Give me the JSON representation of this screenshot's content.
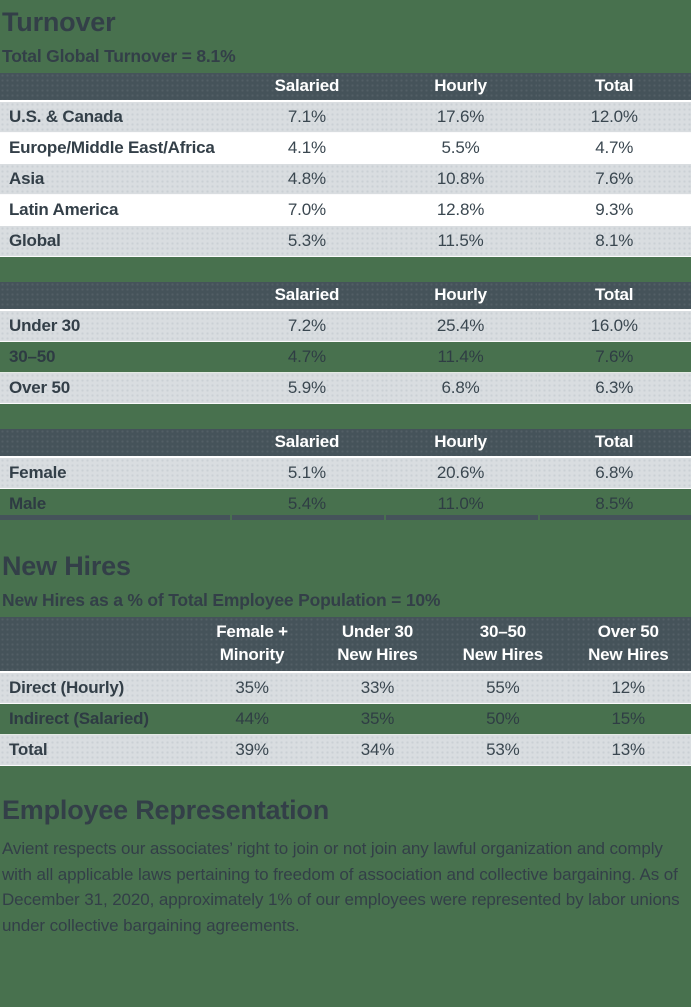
{
  "colors": {
    "page_background": "#48714E",
    "table_header_bg": "#45535A",
    "row_gray": "#D9DDE0",
    "row_white": "#FFFFFF",
    "heading_text": "#333F48",
    "header_text": "#FFFFFF"
  },
  "turnover": {
    "title": "Turnover",
    "subtitle": "Total Global Turnover = 8.1%",
    "region_table": {
      "columns": [
        "Salaried",
        "Hourly",
        "Total"
      ],
      "rows": [
        {
          "label": "U.S. & Canada",
          "values": [
            "7.1%",
            "17.6%",
            "12.0%"
          ],
          "bg": "gray"
        },
        {
          "label": "Europe/Middle East/Africa",
          "values": [
            "4.1%",
            "5.5%",
            "4.7%"
          ],
          "bg": "white"
        },
        {
          "label": "Asia",
          "values": [
            "4.8%",
            "10.8%",
            "7.6%"
          ],
          "bg": "gray"
        },
        {
          "label": "Latin America",
          "values": [
            "7.0%",
            "12.8%",
            "9.3%"
          ],
          "bg": "white"
        },
        {
          "label": "Global",
          "values": [
            "5.3%",
            "11.5%",
            "8.1%"
          ],
          "bg": "gray"
        }
      ]
    },
    "age_table": {
      "columns": [
        "Salaried",
        "Hourly",
        "Total"
      ],
      "rows": [
        {
          "label": "Under 30",
          "values": [
            "7.2%",
            "25.4%",
            "16.0%"
          ],
          "bg": "gray"
        },
        {
          "label": "30–50",
          "values": [
            "4.7%",
            "11.4%",
            "7.6%"
          ],
          "bg": "green"
        },
        {
          "label": "Over 50",
          "values": [
            "5.9%",
            "6.8%",
            "6.3%"
          ],
          "bg": "gray"
        }
      ]
    },
    "gender_table": {
      "columns": [
        "Salaried",
        "Hourly",
        "Total"
      ],
      "rows": [
        {
          "label": "Female",
          "values": [
            "5.1%",
            "20.6%",
            "6.8%"
          ],
          "bg": "gray"
        },
        {
          "label": "Male",
          "values": [
            "5.4%",
            "11.0%",
            "8.5%"
          ],
          "bg": "green"
        }
      ]
    }
  },
  "new_hires": {
    "title": "New Hires",
    "subtitle": "New Hires as a % of Total Employee Population = 10%",
    "table": {
      "columns": [
        "Female +\nMinority",
        "Under 30\nNew Hires",
        "30–50\nNew Hires",
        "Over 50\nNew Hires"
      ],
      "rows": [
        {
          "label": "Direct (Hourly)",
          "values": [
            "35%",
            "33%",
            "55%",
            "12%"
          ],
          "bg": "gray"
        },
        {
          "label": "Indirect (Salaried)",
          "values": [
            "44%",
            "35%",
            "50%",
            "15%"
          ],
          "bg": "green"
        },
        {
          "label": "Total",
          "values": [
            "39%",
            "34%",
            "53%",
            "13%"
          ],
          "bg": "gray"
        }
      ]
    }
  },
  "employee_representation": {
    "title": "Employee Representation",
    "body": "Avient respects our associates’ right to join or not join any lawful organization and comply with all applicable laws pertaining to freedom of association and collective bargaining. As of December 31, 2020, approximately 1% of our employees were represented by labor unions under collective bargaining agreements."
  }
}
